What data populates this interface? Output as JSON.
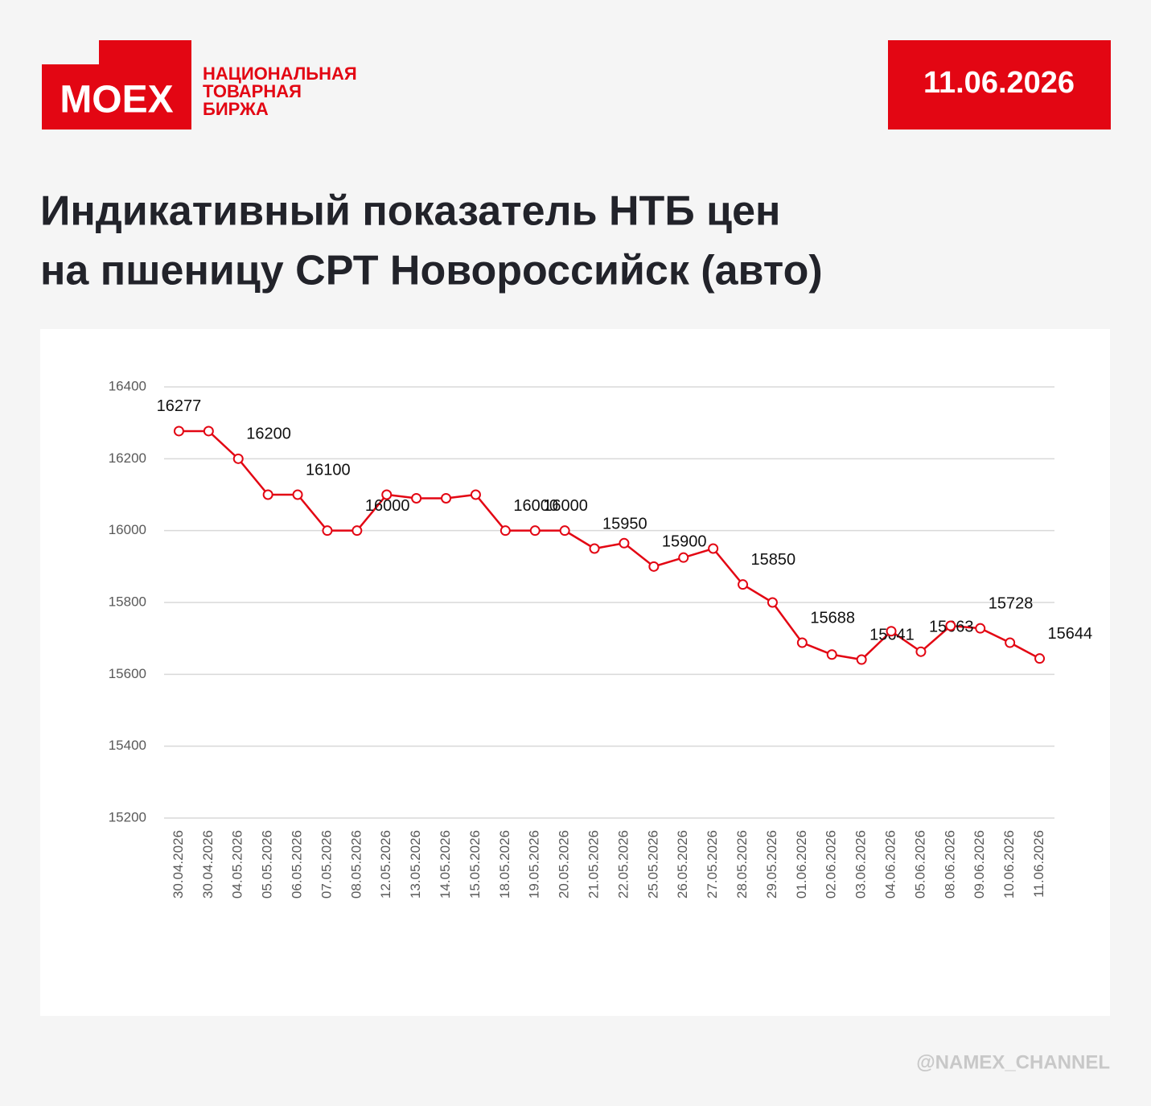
{
  "brand": {
    "logo": "MOEX",
    "name_lines": [
      "НАЦИОНАЛЬНАЯ",
      "ТОВАРНАЯ",
      "БИРЖА"
    ]
  },
  "date": "11.06.2026",
  "footer": "@NAMEX_CHANNEL",
  "chart_data": {
    "type": "line",
    "title": [
      "Индикативный показатель НТБ цен",
      "на пшеницу СРТ Новороссийск (авто)"
    ],
    "categories": [
      "30.04.2026",
      "30.04.2026",
      "04.05.2026",
      "05.05.2026",
      "06.05.2026",
      "07.05.2026",
      "08.05.2026",
      "12.05.2026",
      "13.05.2026",
      "14.05.2026",
      "15.05.2026",
      "18.05.2026",
      "19.05.2026",
      "20.05.2026",
      "21.05.2026",
      "22.05.2026",
      "25.05.2026",
      "26.05.2026",
      "27.05.2026",
      "28.05.2026",
      "29.05.2026",
      "01.06.2026",
      "02.06.2026",
      "03.06.2026",
      "04.06.2026",
      "05.06.2026",
      "08.06.2026",
      "09.06.2026",
      "10.06.2026",
      "11.06.2026"
    ],
    "series": [
      {
        "name": "Индикативный показатель",
        "color": "#e30613",
        "values": [
          16277,
          16277,
          16200,
          16100,
          16100,
          16000,
          16000,
          16100,
          16090,
          16090,
          16100,
          16000,
          16000,
          16000,
          15950,
          15965,
          15900,
          15925,
          15950,
          15850,
          15800,
          15688,
          15655,
          15641,
          15720,
          15663,
          15735,
          15728,
          15688,
          15644
        ],
        "value_labels": [
          "16277",
          null,
          "16200",
          null,
          "16100",
          null,
          "16000",
          null,
          null,
          null,
          null,
          "16000",
          "16000",
          null,
          "15950",
          null,
          "15900",
          null,
          null,
          "15850",
          null,
          "15688",
          null,
          "15641",
          null,
          "15663",
          null,
          "15728",
          null,
          "15644"
        ]
      }
    ],
    "ylim": [
      15200,
      16400
    ],
    "yticks": [
      15200,
      15400,
      15600,
      15800,
      16000,
      16200,
      16400
    ],
    "grid": true
  }
}
